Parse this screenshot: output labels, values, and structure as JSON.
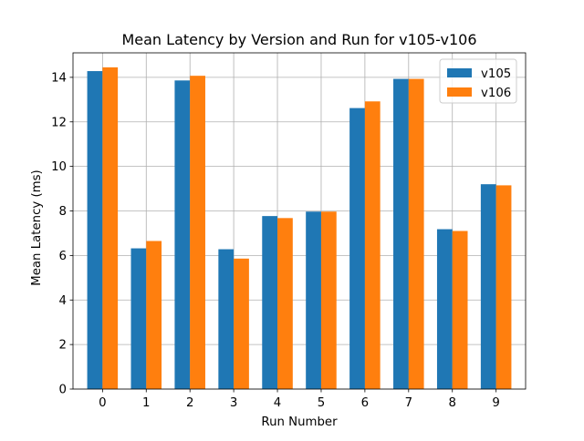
{
  "chart_data": {
    "type": "bar",
    "title": "Mean Latency by Version and Run for v105-v106",
    "xlabel": "Run Number",
    "ylabel": "Mean Latency (ms)",
    "categories": [
      "0",
      "1",
      "2",
      "3",
      "4",
      "5",
      "6",
      "7",
      "8",
      "9"
    ],
    "series": [
      {
        "name": "v105",
        "color": "#1f77b4",
        "values": [
          14.28,
          6.32,
          13.86,
          6.28,
          7.77,
          7.97,
          12.62,
          13.93,
          7.18,
          9.2
        ]
      },
      {
        "name": "v106",
        "color": "#ff7f0e",
        "values": [
          14.45,
          6.65,
          14.07,
          5.86,
          7.68,
          7.97,
          12.92,
          13.93,
          7.1,
          9.15
        ]
      }
    ],
    "ylim": [
      0,
      15.1
    ],
    "yticks": [
      0,
      2,
      4,
      6,
      8,
      10,
      12,
      14
    ],
    "grid": true,
    "legend_position": "top-right"
  }
}
